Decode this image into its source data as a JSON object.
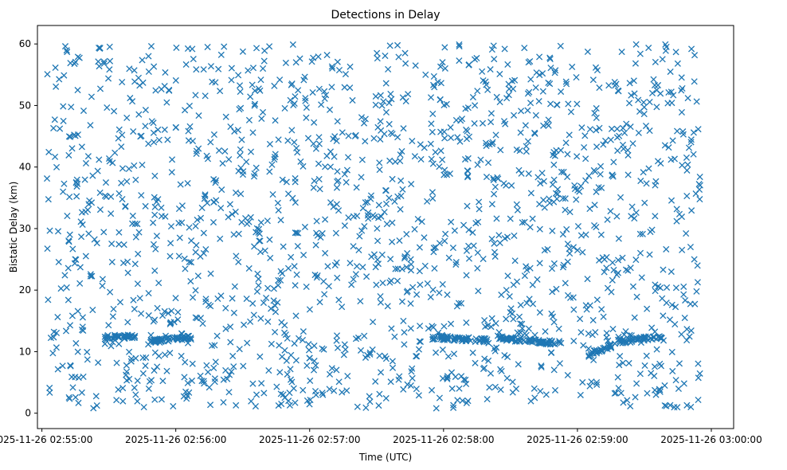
{
  "chart_data": {
    "type": "scatter",
    "title": "Detections in Delay",
    "xlabel": "Time (UTC)",
    "ylabel": "Bistatic Delay (km)",
    "x_axis": "time",
    "xlim": [
      "2025-11-26 02:54:58",
      "2025-11-26 03:00:10"
    ],
    "ylim": [
      -2.5,
      63
    ],
    "x_ticks": [
      "2025-11-26 02:55:00",
      "2025-11-26 02:56:00",
      "2025-11-26 02:57:00",
      "2025-11-26 02:58:00",
      "2025-11-26 02:59:00",
      "2025-11-26 03:00:00"
    ],
    "y_ticks": [
      0,
      10,
      20,
      30,
      40,
      50,
      60
    ],
    "marker": "x",
    "color": "#1f77b4",
    "grid": false,
    "legend": "none",
    "approx_point_count": 1900,
    "time_range": [
      "2025-11-26 02:55:02",
      "2025-11-26 02:59:55"
    ],
    "delay_range": [
      0.5,
      60
    ],
    "clutter_tracks": [
      {
        "time_start": "2025-11-26 02:55:28",
        "time_end": "2025-11-26 02:55:42",
        "delay_start": 12.3,
        "delay_end": 12.5
      },
      {
        "time_start": "2025-11-26 02:55:47",
        "time_end": "2025-11-26 02:56:07",
        "delay_start": 11.6,
        "delay_end": 12.3
      },
      {
        "time_start": "2025-11-26 02:57:55",
        "time_end": "2025-11-26 02:58:20",
        "delay_start": 12.3,
        "delay_end": 11.8
      },
      {
        "time_start": "2025-11-26 02:58:23",
        "time_end": "2025-11-26 02:58:50",
        "delay_start": 12.3,
        "delay_end": 11.4
      },
      {
        "time_start": "2025-11-26 02:59:05",
        "time_end": "2025-11-26 02:59:17",
        "delay_start": 9.5,
        "delay_end": 11.2
      },
      {
        "time_start": "2025-11-26 02:59:18",
        "time_end": "2025-11-26 02:59:38",
        "delay_start": 11.6,
        "delay_end": 12.4
      }
    ]
  }
}
